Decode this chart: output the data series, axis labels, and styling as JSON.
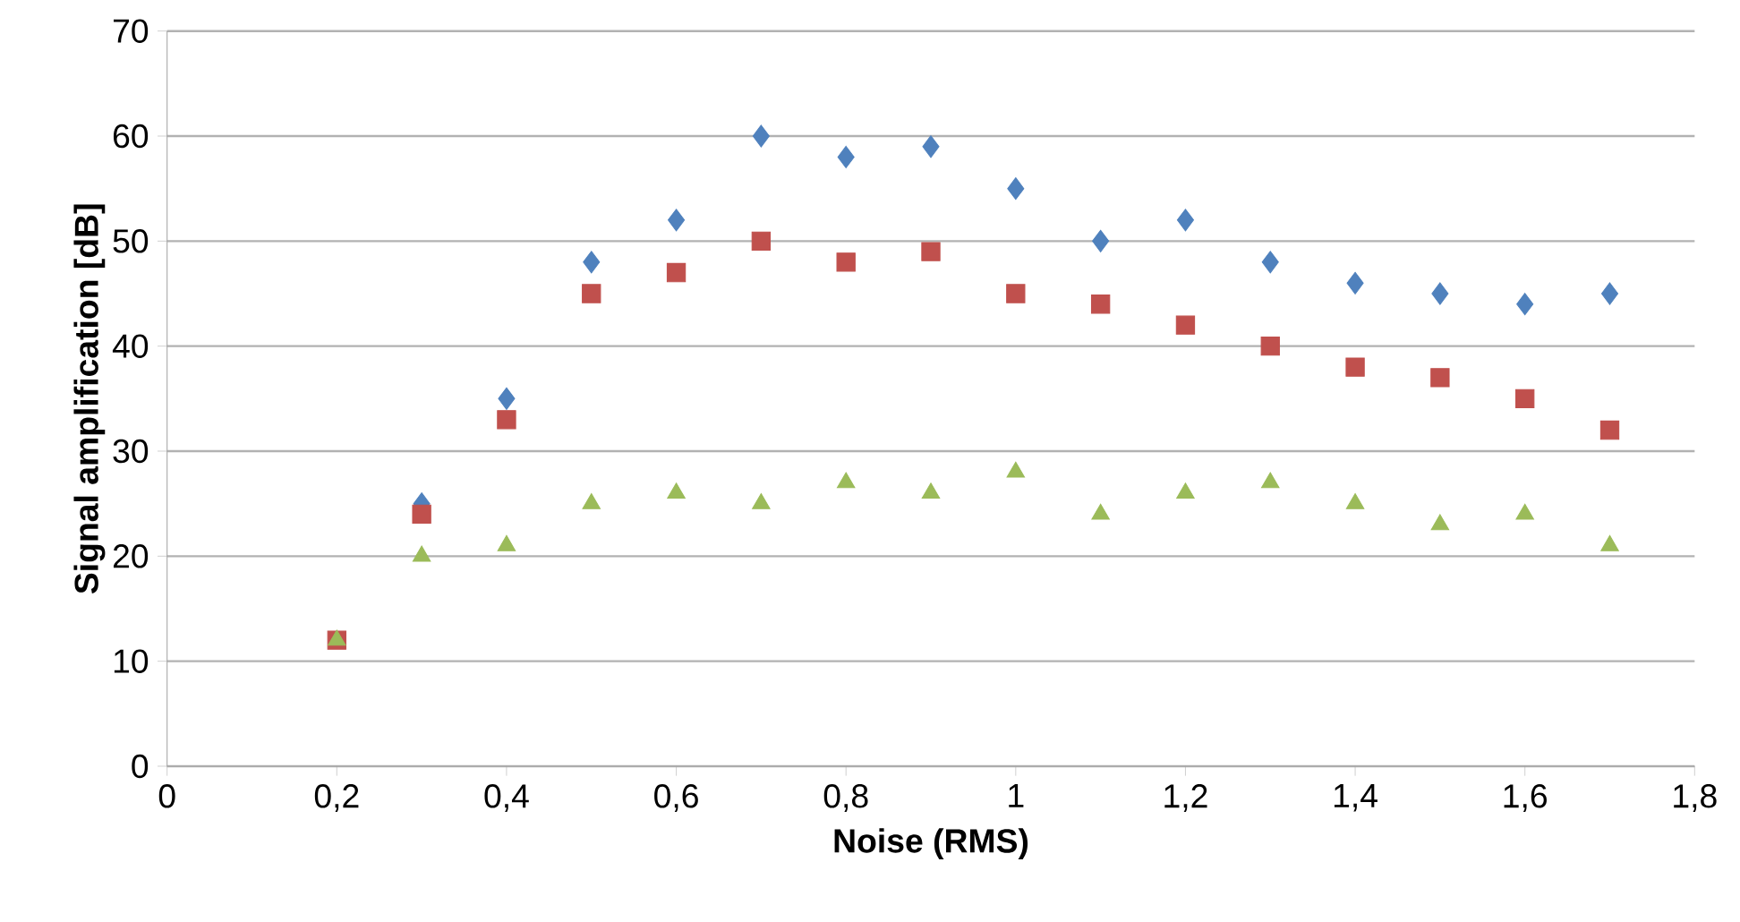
{
  "chart_data": {
    "type": "scatter",
    "xlabel": "Noise (RMS)",
    "ylabel": "Signal amplification [dB]",
    "x": [
      0.2,
      0.3,
      0.4,
      0.5,
      0.6,
      0.7,
      0.8,
      0.9,
      1.0,
      1.1,
      1.2,
      1.3,
      1.4,
      1.5,
      1.6,
      1.7
    ],
    "series": [
      {
        "color": "#4f81bd",
        "marker": "diamond",
        "values": [
          null,
          25,
          35,
          48,
          52,
          60,
          58,
          59,
          55,
          50,
          52,
          48,
          46,
          45,
          44,
          45
        ]
      },
      {
        "color": "#c0504d",
        "marker": "square",
        "values": [
          12,
          24,
          33,
          45,
          47,
          50,
          48,
          49,
          45,
          44,
          42,
          40,
          38,
          37,
          35,
          32
        ]
      },
      {
        "color": "#9bbb59",
        "marker": "triangle",
        "values": [
          12,
          20,
          21,
          25,
          26,
          25,
          27,
          26,
          28,
          24,
          26,
          27,
          25,
          23,
          24,
          21
        ]
      }
    ],
    "xlim": [
      0,
      1.8
    ],
    "xticks": [
      0,
      {
        "value": 0.2,
        "label": "0,2"
      },
      {
        "value": 0.4,
        "label": "0,4"
      },
      {
        "value": 0.6,
        "label": "0,6"
      },
      {
        "value": 0.8,
        "label": "0,8"
      },
      1,
      {
        "value": 1.2,
        "label": "1,2"
      },
      {
        "value": 1.4,
        "label": "1,4"
      },
      {
        "value": 1.6,
        "label": "1,6"
      },
      {
        "value": 1.8,
        "label": "1,8"
      }
    ],
    "ylim": [
      0,
      70
    ],
    "yticks": [
      0,
      10,
      20,
      30,
      40,
      50,
      60,
      70
    ],
    "grid": "y"
  }
}
